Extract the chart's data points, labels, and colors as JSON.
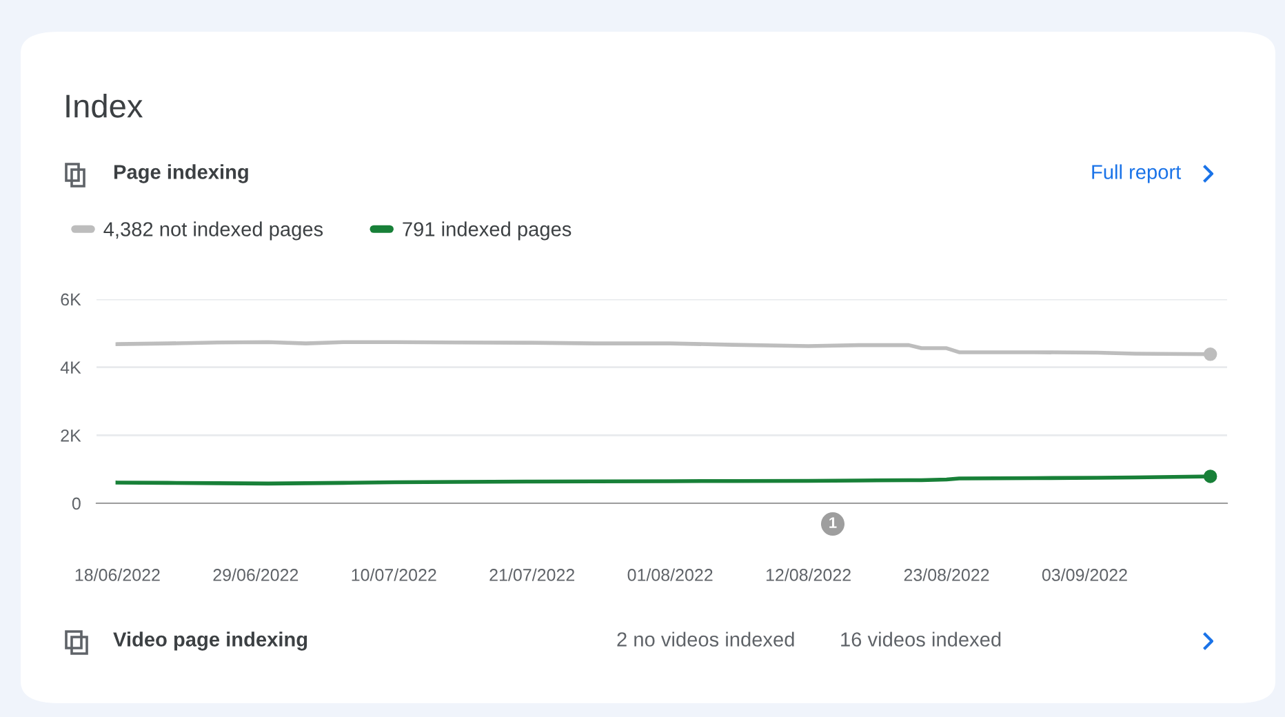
{
  "chart_data": {
    "type": "line",
    "title": "Index",
    "subtitle": "Page indexing",
    "annotations": [
      "Full report",
      "1",
      "Video page indexing",
      "2 no videos indexed",
      "16 videos indexed"
    ],
    "x": [
      "2022-06-18",
      "2022-06-22",
      "2022-06-26",
      "2022-06-30",
      "2022-07-03",
      "2022-07-06",
      "2022-07-10",
      "2022-07-15",
      "2022-07-21",
      "2022-07-26",
      "2022-08-01",
      "2022-08-06",
      "2022-08-12",
      "2022-08-16",
      "2022-08-20",
      "2022-08-21",
      "2022-08-23",
      "2022-08-24",
      "2022-08-30",
      "2022-09-04",
      "2022-09-07",
      "2022-09-13"
    ],
    "series": [
      {
        "name": "4,382 not indexed pages",
        "color": "#bdbdbd",
        "values": [
          4680,
          4700,
          4730,
          4740,
          4700,
          4740,
          4740,
          4730,
          4720,
          4700,
          4700,
          4660,
          4620,
          4650,
          4650,
          4560,
          4560,
          4440,
          4440,
          4430,
          4400,
          4382
        ]
      },
      {
        "name": "791 indexed pages",
        "color": "#188038",
        "values": [
          610,
          600,
          590,
          580,
          590,
          600,
          620,
          630,
          640,
          645,
          650,
          655,
          660,
          670,
          680,
          680,
          700,
          730,
          740,
          750,
          760,
          791
        ]
      }
    ],
    "xlim": [
      "2022-06-16T08:00",
      "2022-09-14T08:00"
    ],
    "xticks": [
      {
        "value": "2022-06-18",
        "label": "18/06/2022"
      },
      {
        "value": "2022-06-29",
        "label": "29/06/2022"
      },
      {
        "value": "2022-07-10",
        "label": "10/07/2022"
      },
      {
        "value": "2022-07-21",
        "label": "21/07/2022"
      },
      {
        "value": "2022-08-01",
        "label": "01/08/2022"
      },
      {
        "value": "2022-08-12",
        "label": "12/08/2022"
      },
      {
        "value": "2022-08-23",
        "label": "23/08/2022"
      },
      {
        "value": "2022-09-03",
        "label": "03/09/2022"
      }
    ],
    "ylim": [
      0,
      6000
    ],
    "yticks": [
      0,
      {
        "value": 2000,
        "label": "2K"
      },
      {
        "value": 4000,
        "label": "4K"
      },
      {
        "value": 6000,
        "label": "6K"
      }
    ],
    "grid": "y",
    "legend": "top left"
  }
}
